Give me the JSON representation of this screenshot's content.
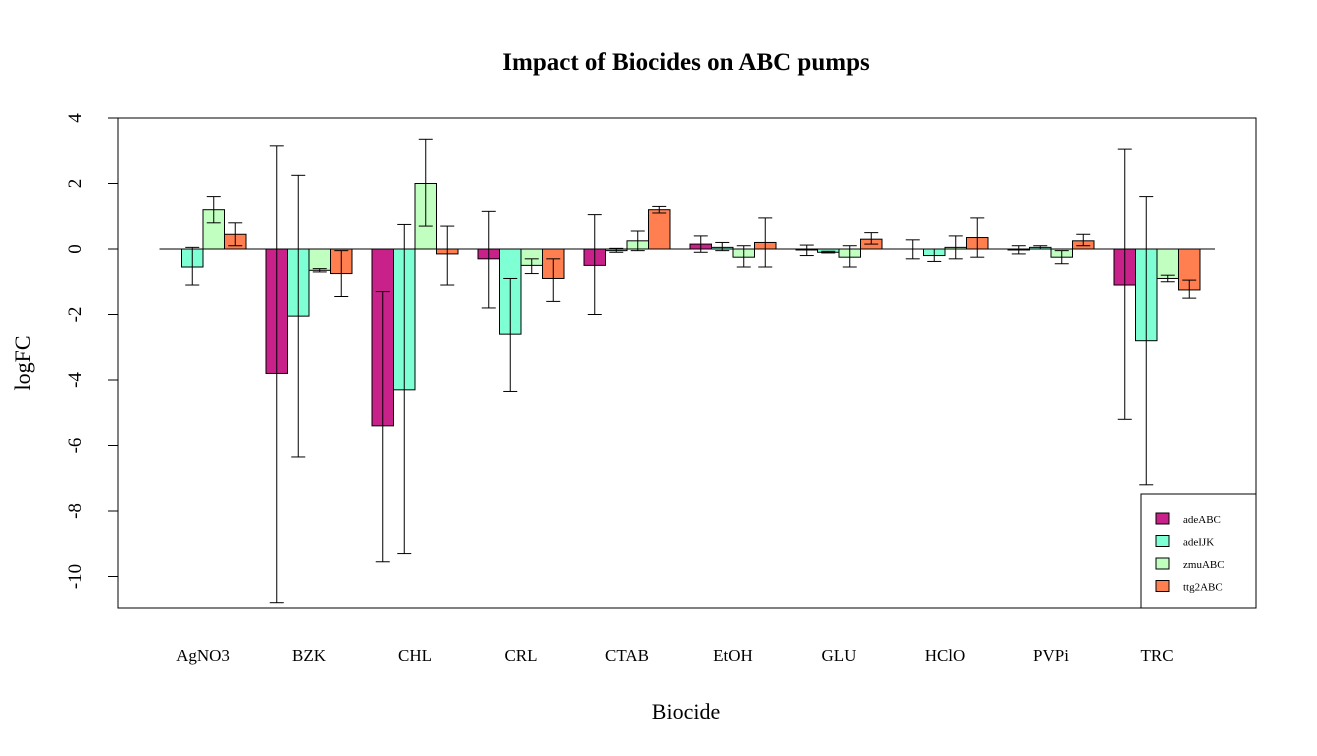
{
  "chart_data": {
    "type": "bar",
    "title": "Impact of Biocides on ABC pumps",
    "xlabel": "Biocide",
    "ylabel": "logFC",
    "ylim": [
      -11,
      4
    ],
    "yticks": [
      4,
      2,
      0,
      -2,
      -4,
      -6,
      -8,
      -10
    ],
    "categories": [
      "AgNO3",
      "BZK",
      "CHL",
      "CRL",
      "CTAB",
      "EtOH",
      "GLU",
      "HClO",
      "PVPi",
      "TRC"
    ],
    "series": [
      {
        "name": "adeABC",
        "color": "#C9218A",
        "values": [
          0,
          -3.8,
          -5.4,
          -0.3,
          -0.5,
          0.15,
          -0.03,
          0.0,
          -0.03,
          -1.1
        ],
        "err_low": [
          0,
          -10.8,
          -9.55,
          -1.8,
          -2.0,
          -0.1,
          -0.2,
          -0.3,
          -0.15,
          -5.2
        ],
        "err_high": [
          0,
          3.15,
          -1.3,
          1.15,
          1.05,
          0.4,
          0.12,
          0.28,
          0.1,
          3.05
        ]
      },
      {
        "name": "adeIJK",
        "color": "#7FFFD4",
        "values": [
          -0.55,
          -2.05,
          -4.3,
          -2.6,
          -0.05,
          0.05,
          -0.1,
          -0.2,
          0.05,
          -2.8
        ],
        "err_low": [
          -1.1,
          -6.35,
          -9.3,
          -4.35,
          -0.1,
          -0.05,
          -0.12,
          -0.38,
          0.0,
          -7.2
        ],
        "err_high": [
          0.05,
          2.25,
          0.75,
          -0.9,
          0.02,
          0.2,
          -0.07,
          0.0,
          0.1,
          1.6
        ]
      },
      {
        "name": "zmuABC",
        "color": "#C1FFC1",
        "values": [
          1.2,
          -0.65,
          2.0,
          -0.5,
          0.25,
          -0.25,
          -0.25,
          0.05,
          -0.25,
          -0.9
        ],
        "err_low": [
          0.8,
          -0.7,
          0.7,
          -0.75,
          -0.05,
          -0.55,
          -0.55,
          -0.3,
          -0.45,
          -1.0
        ],
        "err_high": [
          1.6,
          -0.6,
          3.35,
          -0.3,
          0.55,
          0.1,
          0.1,
          0.4,
          -0.05,
          -0.8
        ]
      },
      {
        "name": "ttg2ABC",
        "color": "#FF7F50",
        "values": [
          0.45,
          -0.75,
          -0.15,
          -0.9,
          1.2,
          0.2,
          0.3,
          0.35,
          0.25,
          -1.25
        ],
        "err_low": [
          0.1,
          -1.45,
          -1.1,
          -1.6,
          1.1,
          -0.55,
          0.15,
          -0.25,
          0.1,
          -1.5
        ],
        "err_high": [
          0.8,
          -0.05,
          0.7,
          -0.3,
          1.3,
          0.95,
          0.5,
          0.95,
          0.45,
          -0.95
        ]
      }
    ],
    "legend": "bottom-right",
    "grid": false
  }
}
